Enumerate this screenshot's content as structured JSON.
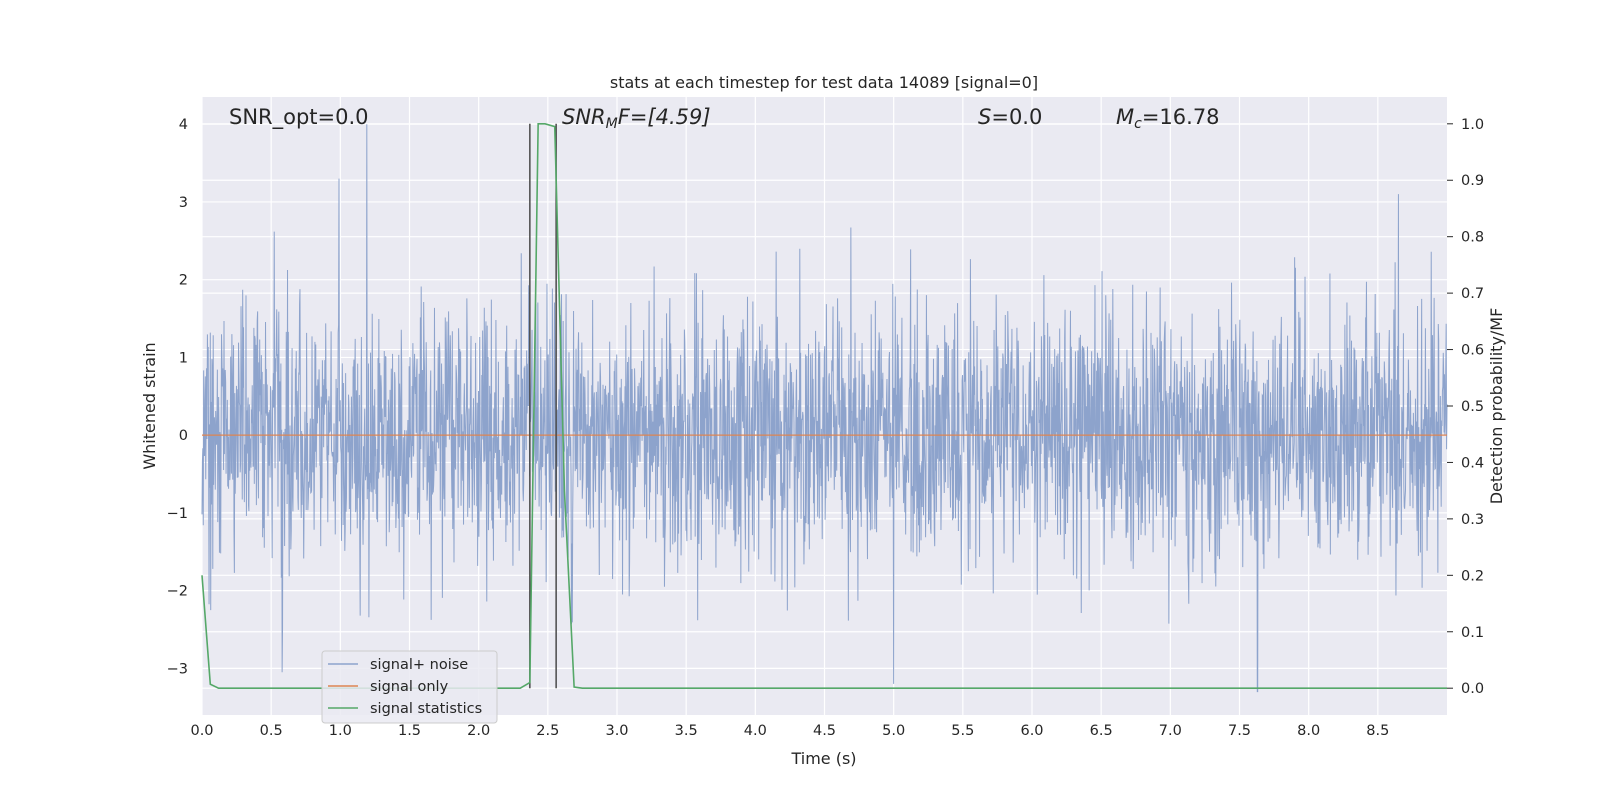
{
  "chart_data": {
    "type": "line",
    "title": "stats at each timestep for test data 14089 [signal=0]",
    "xlabel": "Time (s)",
    "ylabel": "Whitened strain",
    "y2label": "Detection probability/MF",
    "xlim": [
      0.0,
      9.0
    ],
    "ylim": [
      -3.6,
      4.35
    ],
    "y2lim": [
      -0.0475,
      1.0475
    ],
    "x_ticks": [
      "0.0",
      "0.5",
      "1.0",
      "1.5",
      "2.0",
      "2.5",
      "3.0",
      "3.5",
      "4.0",
      "4.5",
      "5.0",
      "5.5",
      "6.0",
      "6.5",
      "7.0",
      "7.5",
      "8.0",
      "8.5"
    ],
    "y_ticks": [
      "4",
      "3",
      "2",
      "1",
      "0",
      "−1",
      "−2",
      "−3"
    ],
    "y2_ticks": [
      "1.0",
      "0.9",
      "0.8",
      "0.7",
      "0.6",
      "0.5",
      "0.4",
      "0.3",
      "0.2",
      "0.1",
      "0.0"
    ],
    "grid": true,
    "legend_position": "lower-left",
    "annotations": {
      "snr_opt": "SNR_opt=0.0",
      "snr_mf_name": "SNR",
      "snr_mf_sub": "M",
      "snr_mf_tail": "F=[4.59]",
      "s_name": "S",
      "s_tail": "=0.0",
      "mc_name": "M",
      "mc_sub": "c",
      "mc_tail": "=16.78"
    },
    "series": [
      {
        "name": "signal+ noise",
        "color": "#8da3cc",
        "note": "whitened strain noise, roughly Gaussian, peaks near ±4",
        "notable_peaks": [
          [
            1.19,
            4.0
          ],
          [
            0.99,
            3.3
          ],
          [
            8.65,
            3.1
          ],
          [
            5.0,
            -3.2
          ],
          [
            7.63,
            -3.3
          ],
          [
            0.58,
            -3.05
          ]
        ]
      },
      {
        "name": "signal only",
        "color": "#dd8452",
        "x": [
          0.0,
          9.0
        ],
        "y": [
          0.0,
          0.0
        ]
      },
      {
        "name": "signal statistics",
        "color": "#55a868",
        "axis": "right",
        "x": [
          0.0,
          0.06,
          0.12,
          1.0,
          2.0,
          2.3,
          2.37,
          2.43,
          2.48,
          2.55,
          2.62,
          2.69,
          2.75,
          3.0,
          6.0,
          9.0
        ],
        "y": [
          0.2,
          0.007,
          0.0,
          0.0,
          0.0,
          0.0,
          0.01,
          1.0,
          1.0,
          0.995,
          0.35,
          0.002,
          0.0,
          0.0,
          0.0,
          0.0
        ]
      }
    ],
    "vertical_lines": [
      2.37,
      2.56
    ]
  }
}
